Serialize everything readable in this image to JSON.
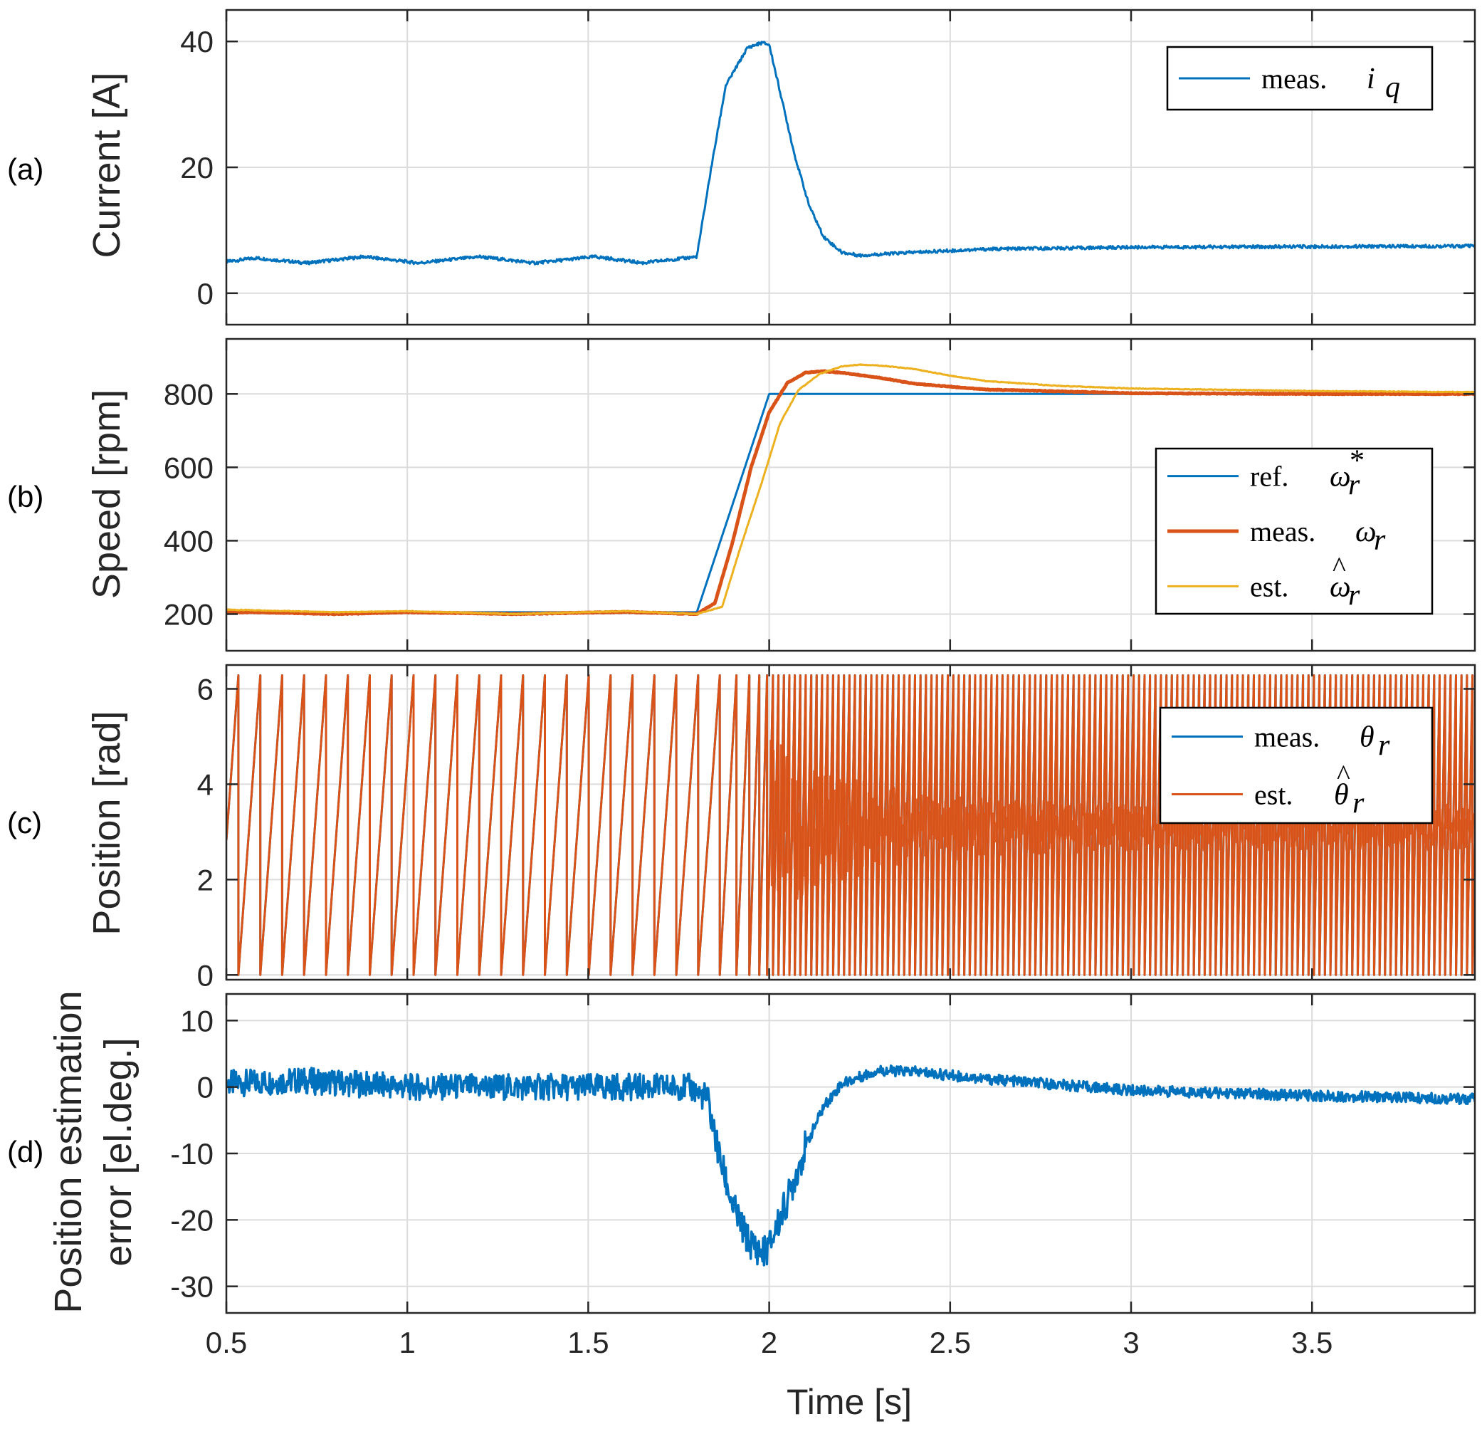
{
  "chart_data": [
    {
      "type": "line",
      "panel_label": "(a)",
      "ylabel": "Current [A]",
      "xlim": [
        0.5,
        3.95
      ],
      "ylim": [
        -5,
        45
      ],
      "yticks": [
        0,
        20,
        40
      ],
      "xticks": [
        0.5,
        1,
        1.5,
        2,
        2.5,
        3,
        3.5
      ],
      "grid": true,
      "legend": "top-right",
      "series": [
        {
          "name": "meas. i_q",
          "legend_text": "meas.",
          "legend_symbol": "i",
          "legend_sub": "q",
          "legend_hat": false,
          "legend_sup": "",
          "color": "#0072BD",
          "points": [
            [
              0.5,
              5
            ],
            [
              0.58,
              5.6
            ],
            [
              0.72,
              4.8
            ],
            [
              0.88,
              5.8
            ],
            [
              1.03,
              4.8
            ],
            [
              1.2,
              5.8
            ],
            [
              1.35,
              4.8
            ],
            [
              1.52,
              5.8
            ],
            [
              1.65,
              4.8
            ],
            [
              1.8,
              5.8
            ],
            [
              1.84,
              20
            ],
            [
              1.88,
              33
            ],
            [
              1.94,
              39
            ],
            [
              1.98,
              39.8
            ],
            [
              2.0,
              39.5
            ],
            [
              2.03,
              32
            ],
            [
              2.07,
              22
            ],
            [
              2.11,
              14
            ],
            [
              2.15,
              9
            ],
            [
              2.2,
              6.5
            ],
            [
              2.25,
              6
            ],
            [
              2.4,
              6.5
            ],
            [
              2.6,
              7
            ],
            [
              3.0,
              7.3
            ],
            [
              3.5,
              7.4
            ],
            [
              3.95,
              7.5
            ]
          ]
        }
      ]
    },
    {
      "type": "line",
      "panel_label": "(b)",
      "ylabel": "Speed [rpm]",
      "xlim": [
        0.5,
        3.95
      ],
      "ylim": [
        100,
        950
      ],
      "yticks": [
        200,
        400,
        600,
        800
      ],
      "xticks": [
        0.5,
        1,
        1.5,
        2,
        2.5,
        3,
        3.5
      ],
      "grid": true,
      "legend": "right",
      "series": [
        {
          "name": "ref. ω_r*",
          "legend_text": "ref.",
          "legend_symbol": "ω",
          "legend_sub": "r",
          "legend_hat": false,
          "legend_sup": "*",
          "color": "#0072BD",
          "points": [
            [
              0.5,
              205
            ],
            [
              1.8,
              205
            ],
            [
              2.0,
              800
            ],
            [
              3.95,
              800
            ]
          ]
        },
        {
          "name": "meas. ω_r",
          "legend_text": "meas.",
          "legend_symbol": "ω",
          "legend_sub": "r",
          "legend_hat": false,
          "legend_sup": "",
          "color": "#D95319",
          "points": [
            [
              0.5,
              205
            ],
            [
              0.6,
              205
            ],
            [
              0.8,
              200
            ],
            [
              1.0,
              205
            ],
            [
              1.3,
              200
            ],
            [
              1.6,
              206
            ],
            [
              1.8,
              200
            ],
            [
              1.85,
              230
            ],
            [
              1.9,
              400
            ],
            [
              1.95,
              600
            ],
            [
              2.0,
              750
            ],
            [
              2.05,
              830
            ],
            [
              2.1,
              858
            ],
            [
              2.15,
              862
            ],
            [
              2.2,
              858
            ],
            [
              2.3,
              845
            ],
            [
              2.4,
              828
            ],
            [
              2.6,
              812
            ],
            [
              3.0,
              802
            ],
            [
              3.5,
              800
            ],
            [
              3.95,
              800
            ]
          ]
        },
        {
          "name": "est. ω̂_r",
          "legend_text": "est.",
          "legend_symbol": "ω",
          "legend_sub": "r",
          "legend_hat": true,
          "legend_sup": "",
          "color": "#EDB120",
          "points": [
            [
              0.5,
              212
            ],
            [
              0.6,
              210
            ],
            [
              0.8,
              205
            ],
            [
              1.0,
              208
            ],
            [
              1.3,
              200
            ],
            [
              1.6,
              208
            ],
            [
              1.8,
              200
            ],
            [
              1.87,
              220
            ],
            [
              1.92,
              380
            ],
            [
              1.98,
              560
            ],
            [
              2.03,
              720
            ],
            [
              2.08,
              810
            ],
            [
              2.14,
              855
            ],
            [
              2.2,
              875
            ],
            [
              2.25,
              880
            ],
            [
              2.3,
              878
            ],
            [
              2.4,
              868
            ],
            [
              2.5,
              850
            ],
            [
              2.6,
              835
            ],
            [
              2.8,
              822
            ],
            [
              3.0,
              815
            ],
            [
              3.5,
              808
            ],
            [
              3.95,
              805
            ]
          ]
        }
      ]
    },
    {
      "type": "line",
      "panel_label": "(c)",
      "ylabel": "Position [rad]",
      "xlim": [
        0.5,
        3.95
      ],
      "ylim": [
        -0.1,
        6.5
      ],
      "yticks": [
        0,
        2,
        4,
        6
      ],
      "xticks": [
        0.5,
        1,
        1.5,
        2,
        2.5,
        3,
        3.5
      ],
      "grid": true,
      "legend": "right",
      "series": [
        {
          "name": "meas. θ_r",
          "legend_text": "meas.",
          "legend_symbol": "θ",
          "legend_sub": "r",
          "legend_hat": false,
          "legend_sup": "",
          "color": "#0072BD",
          "sawtooth": {
            "period_start": 0.0605,
            "period_end": 0.0151,
            "ramp_start": 1.8,
            "ramp_end": 2.0,
            "min": 0,
            "max": 6.283
          }
        },
        {
          "name": "est. θ̂_r",
          "legend_text": "est.",
          "legend_symbol": "θ",
          "legend_sub": "r",
          "legend_hat": true,
          "legend_sup": "",
          "color": "#D95319",
          "sawtooth": {
            "period_start": 0.0605,
            "period_end": 0.0151,
            "ramp_start": 1.8,
            "ramp_end": 2.0,
            "min": 0,
            "max": 6.283
          }
        }
      ]
    },
    {
      "type": "line",
      "panel_label": "(d)",
      "ylabel_line1": "Position estimation",
      "ylabel_line2": "error [el.deg.]",
      "xlabel": "Time [s]",
      "xlim": [
        0.5,
        3.95
      ],
      "ylim": [
        -34,
        14
      ],
      "yticks": [
        -30,
        -20,
        -10,
        0,
        10
      ],
      "xticks": [
        0.5,
        1,
        1.5,
        2,
        2.5,
        3,
        3.5
      ],
      "grid": true,
      "legend": "none",
      "series": [
        {
          "name": "position estimation error",
          "color": "#0072BD",
          "points": [
            [
              0.5,
              0.5
            ],
            [
              0.7,
              1
            ],
            [
              1.0,
              0
            ],
            [
              1.3,
              0
            ],
            [
              1.6,
              0
            ],
            [
              1.78,
              0
            ],
            [
              1.83,
              -2
            ],
            [
              1.86,
              -10
            ],
            [
              1.9,
              -18
            ],
            [
              1.94,
              -23
            ],
            [
              1.98,
              -25
            ],
            [
              2.0,
              -24
            ],
            [
              2.05,
              -17
            ],
            [
              2.1,
              -9
            ],
            [
              2.15,
              -3
            ],
            [
              2.2,
              0.5
            ],
            [
              2.3,
              2.5
            ],
            [
              2.4,
              2.3
            ],
            [
              2.6,
              1.2
            ],
            [
              3.0,
              -0.5
            ],
            [
              3.5,
              -1.3
            ],
            [
              3.95,
              -1.8
            ]
          ]
        }
      ]
    }
  ]
}
